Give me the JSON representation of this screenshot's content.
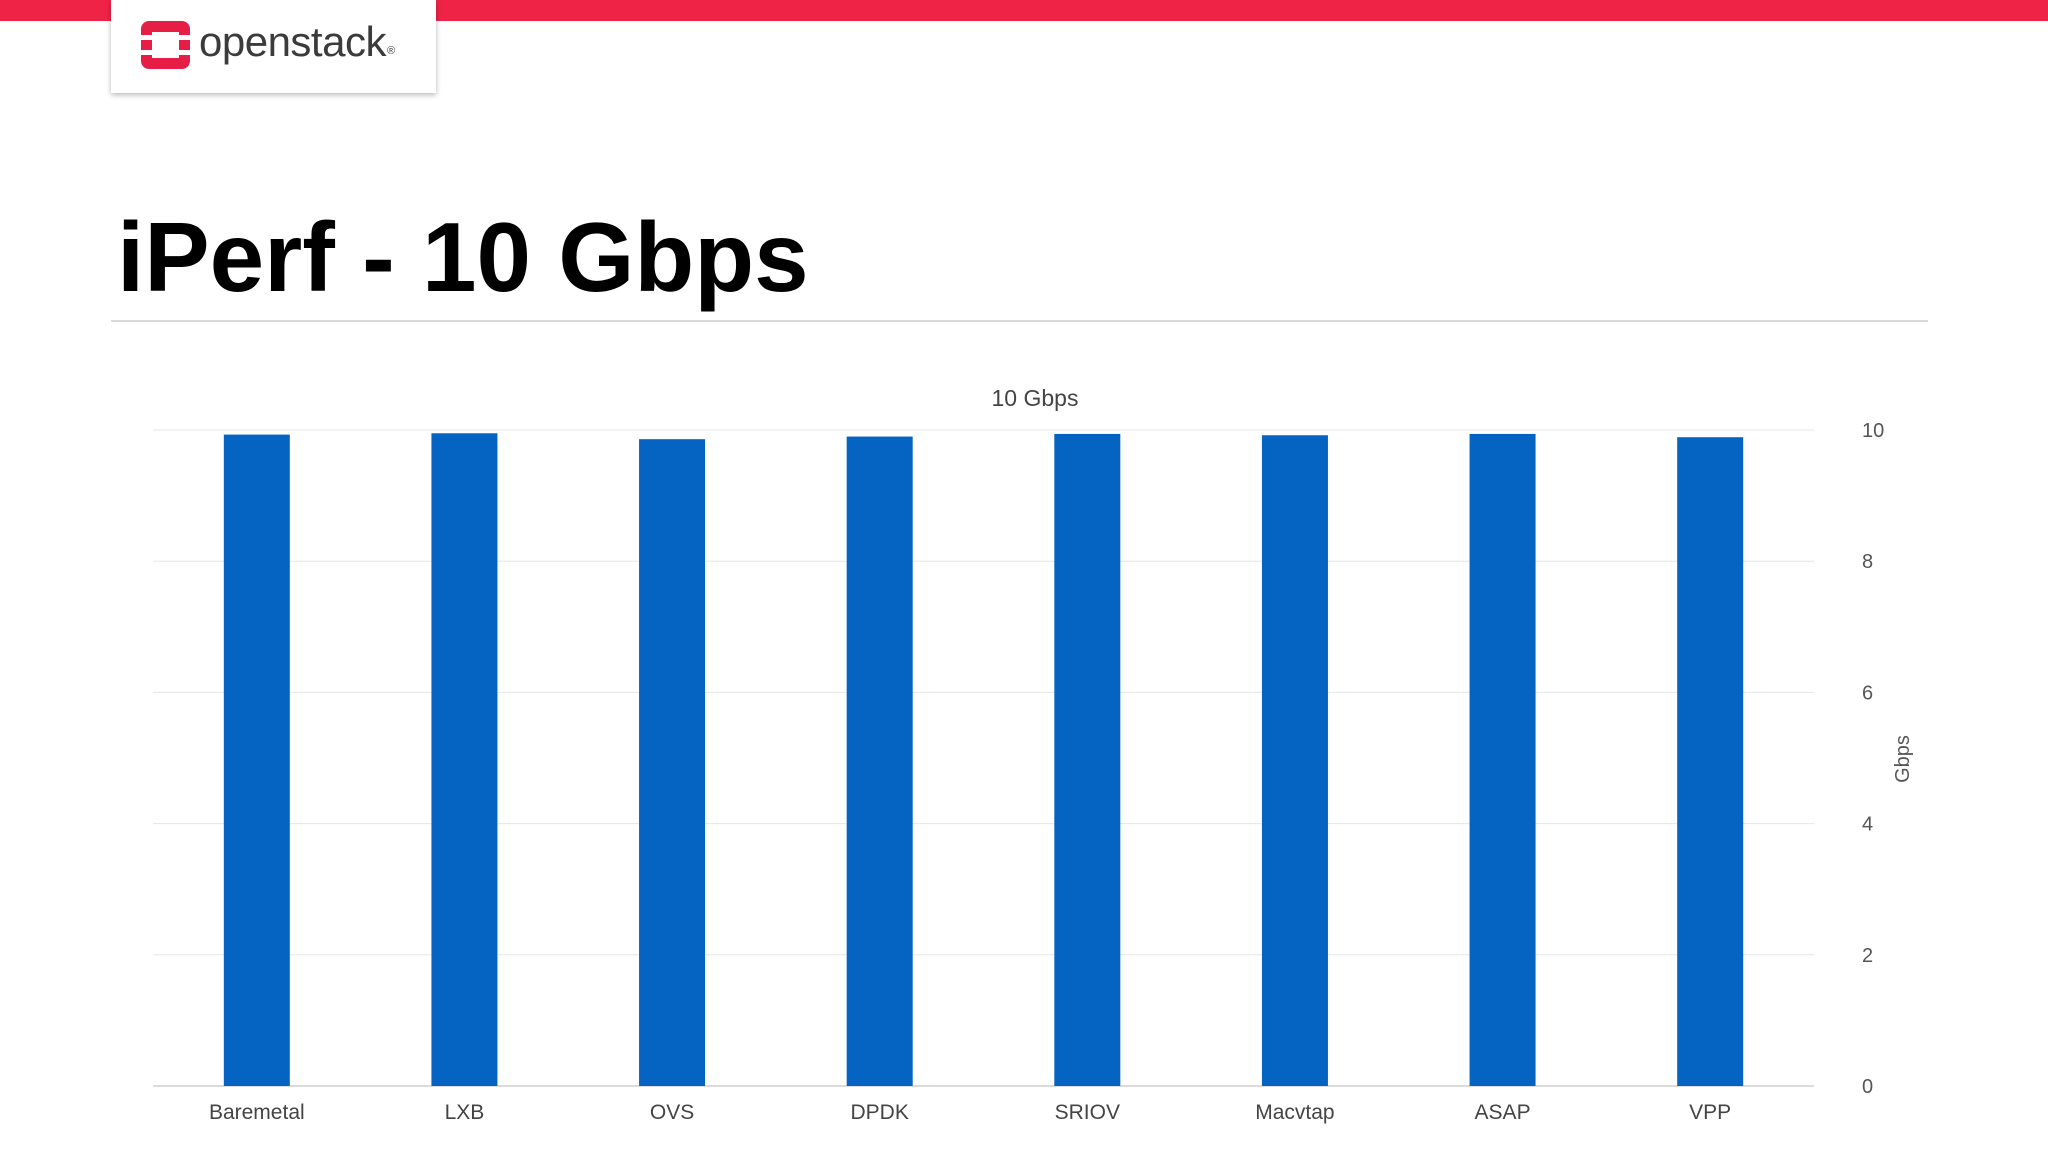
{
  "brand": {
    "logo_text": "openstack",
    "registered_mark": "®",
    "accent_color": "#ee2346",
    "logo_mark_color": "#e61e46"
  },
  "slide": {
    "title": "iPerf - 10 Gbps"
  },
  "chart_data": {
    "type": "bar",
    "title": "10 Gbps",
    "xlabel": "",
    "ylabel": "Gbps",
    "y_axis_position": "right",
    "categories": [
      "Baremetal",
      "LXB",
      "OVS",
      "DPDK",
      "SRIOV",
      "Macvtap",
      "ASAP",
      "VPP"
    ],
    "values": [
      9.93,
      9.95,
      9.86,
      9.9,
      9.94,
      9.92,
      9.94,
      9.89
    ],
    "ylim": [
      0,
      10
    ],
    "yticks": [
      "0",
      "2",
      "4",
      "6",
      "8",
      "10"
    ],
    "grid": true,
    "legend": "none",
    "bar_color": "#0563c1"
  }
}
